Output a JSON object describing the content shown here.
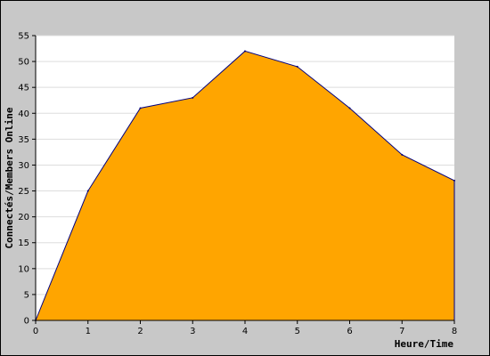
{
  "chart_data": {
    "type": "area",
    "xlabel": "Heure/Time",
    "ylabel": "Connectés/Members Online",
    "x": [
      0,
      1,
      2,
      3,
      4,
      5,
      6,
      7,
      8
    ],
    "series": [
      {
        "values": [
          0,
          25,
          41,
          43,
          52,
          49,
          41,
          32,
          27
        ]
      }
    ],
    "xlim": [
      0,
      8
    ],
    "ylim": [
      0,
      55
    ],
    "x_ticks": [
      "0",
      "1",
      "2",
      "3",
      "4",
      "5",
      "6",
      "7",
      "8"
    ],
    "y_ticks": [
      "0",
      "5",
      "10",
      "15",
      "20",
      "25",
      "30",
      "35",
      "40",
      "45",
      "50",
      "55"
    ],
    "grid": "horizontal",
    "colors": {
      "frame": "#c8c8c8",
      "plot_bg": "#ffffff",
      "area_fill": "#ffa500",
      "area_line": "#000080",
      "grid": "#dddddd"
    }
  }
}
